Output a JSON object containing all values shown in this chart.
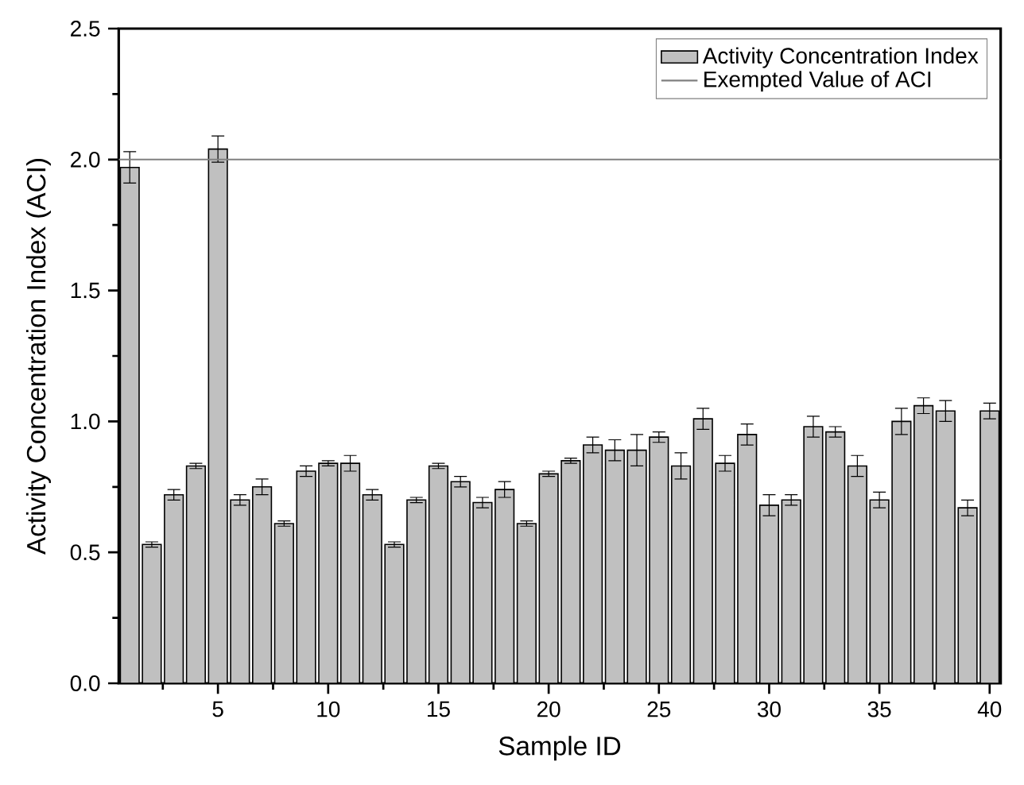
{
  "chart_data": {
    "type": "bar",
    "xlabel": "Sample ID",
    "ylabel": "Activity  Concentration  Index  (ACI)",
    "x": [
      1,
      2,
      3,
      4,
      5,
      6,
      7,
      8,
      9,
      10,
      11,
      12,
      13,
      14,
      15,
      16,
      17,
      18,
      19,
      20,
      21,
      22,
      23,
      24,
      25,
      26,
      27,
      28,
      29,
      30,
      31,
      32,
      33,
      34,
      35,
      36,
      37,
      38,
      39,
      40
    ],
    "series": [
      {
        "name": "Activity Concentration Index",
        "color": "#c0c0c0",
        "values": [
          1.97,
          0.53,
          0.72,
          0.83,
          2.04,
          0.7,
          0.75,
          0.61,
          0.81,
          0.84,
          0.84,
          0.72,
          0.53,
          0.7,
          0.83,
          0.77,
          0.69,
          0.74,
          0.61,
          0.8,
          0.85,
          0.91,
          0.89,
          0.89,
          0.94,
          0.83,
          1.01,
          0.84,
          0.95,
          0.68,
          0.7,
          0.98,
          0.96,
          0.83,
          0.7,
          1.0,
          1.06,
          1.04,
          0.67,
          1.04
        ],
        "errors": [
          0.06,
          0.01,
          0.02,
          0.01,
          0.05,
          0.02,
          0.03,
          0.01,
          0.02,
          0.01,
          0.03,
          0.02,
          0.01,
          0.01,
          0.01,
          0.02,
          0.02,
          0.03,
          0.01,
          0.01,
          0.01,
          0.03,
          0.04,
          0.06,
          0.02,
          0.05,
          0.04,
          0.03,
          0.04,
          0.04,
          0.02,
          0.04,
          0.02,
          0.04,
          0.03,
          0.05,
          0.03,
          0.04,
          0.03,
          0.03
        ]
      }
    ],
    "xlim": [
      0.5,
      40.5
    ],
    "xticks": [
      {
        "value": 2.5,
        "label": null
      },
      5,
      {
        "value": 7.5,
        "label": null
      },
      10,
      {
        "value": 12.5,
        "label": null
      },
      15,
      {
        "value": 17.5,
        "label": null
      },
      20,
      {
        "value": 22.5,
        "label": null
      },
      25,
      {
        "value": 27.5,
        "label": null
      },
      30,
      {
        "value": 32.5,
        "label": null
      },
      35,
      {
        "value": 37.5,
        "label": null
      },
      40
    ],
    "ylim": [
      0,
      2.5
    ],
    "yticks": [
      {
        "value": 0,
        "label": "0.0"
      },
      {
        "value": 0.25,
        "label": null
      },
      {
        "value": 0.5,
        "label": "0.5"
      },
      {
        "value": 0.75,
        "label": null
      },
      {
        "value": 1,
        "label": "1.0"
      },
      {
        "value": 1.25,
        "label": null
      },
      {
        "value": 1.5,
        "label": "1.5"
      },
      {
        "value": 1.75,
        "label": null
      },
      {
        "value": 2,
        "label": "2.0"
      },
      {
        "value": 2.25,
        "label": null
      },
      {
        "value": 2.5,
        "label": "2.5"
      }
    ],
    "ref_lines": [
      {
        "axis": "y",
        "value": 2,
        "label": "Exempted Value of ACI",
        "color": "#808080",
        "line_style": "solid"
      }
    ],
    "legend": "top right",
    "grid": false
  }
}
